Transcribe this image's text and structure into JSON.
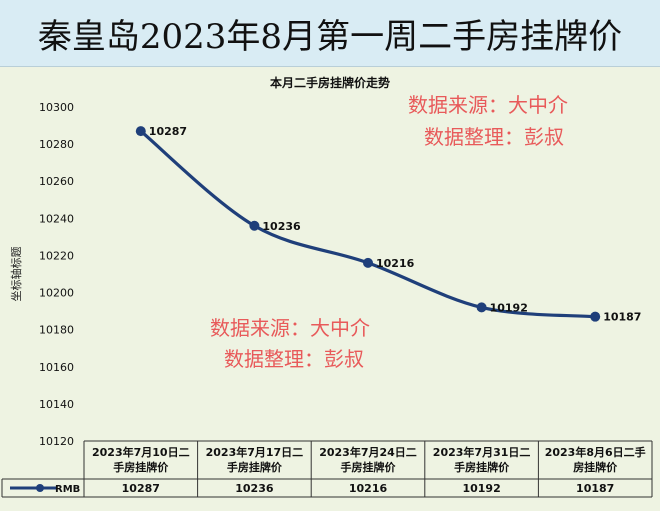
{
  "banner": {
    "title": "秦皇岛2023年8月第一周二手房挂牌价"
  },
  "watermarks": [
    {
      "line1": "数据来源：大中介",
      "line2": "数据整理：彭叔"
    },
    {
      "line1": "数据来源：大中介",
      "line2": "数据整理：彭叔"
    }
  ],
  "colors": {
    "series": "#1f3f7a",
    "watermark": "#e85a5a",
    "plot_bg": "#eef3e2",
    "banner_bg": "#d9ecf4"
  },
  "chart_data": {
    "type": "line",
    "title": "本月二手房挂牌价走势",
    "ylabel": "坐标轴标题",
    "xlabel": "",
    "ylim": [
      10120,
      10300
    ],
    "yticks": [
      10120,
      10140,
      10160,
      10180,
      10200,
      10220,
      10240,
      10260,
      10280,
      10300
    ],
    "categories": [
      [
        "2023年7月10日二",
        "手房挂牌价"
      ],
      [
        "2023年7月17日二",
        "手房挂牌价"
      ],
      [
        "2023年7月24日二",
        "手房挂牌价"
      ],
      [
        "2023年7月31日二",
        "手房挂牌价"
      ],
      [
        "2023年8月6日二手",
        "房挂牌价"
      ]
    ],
    "series": [
      {
        "name": "RMB",
        "values": [
          10287,
          10236,
          10216,
          10192,
          10187
        ]
      }
    ],
    "grid": false,
    "legend": "data-table"
  }
}
